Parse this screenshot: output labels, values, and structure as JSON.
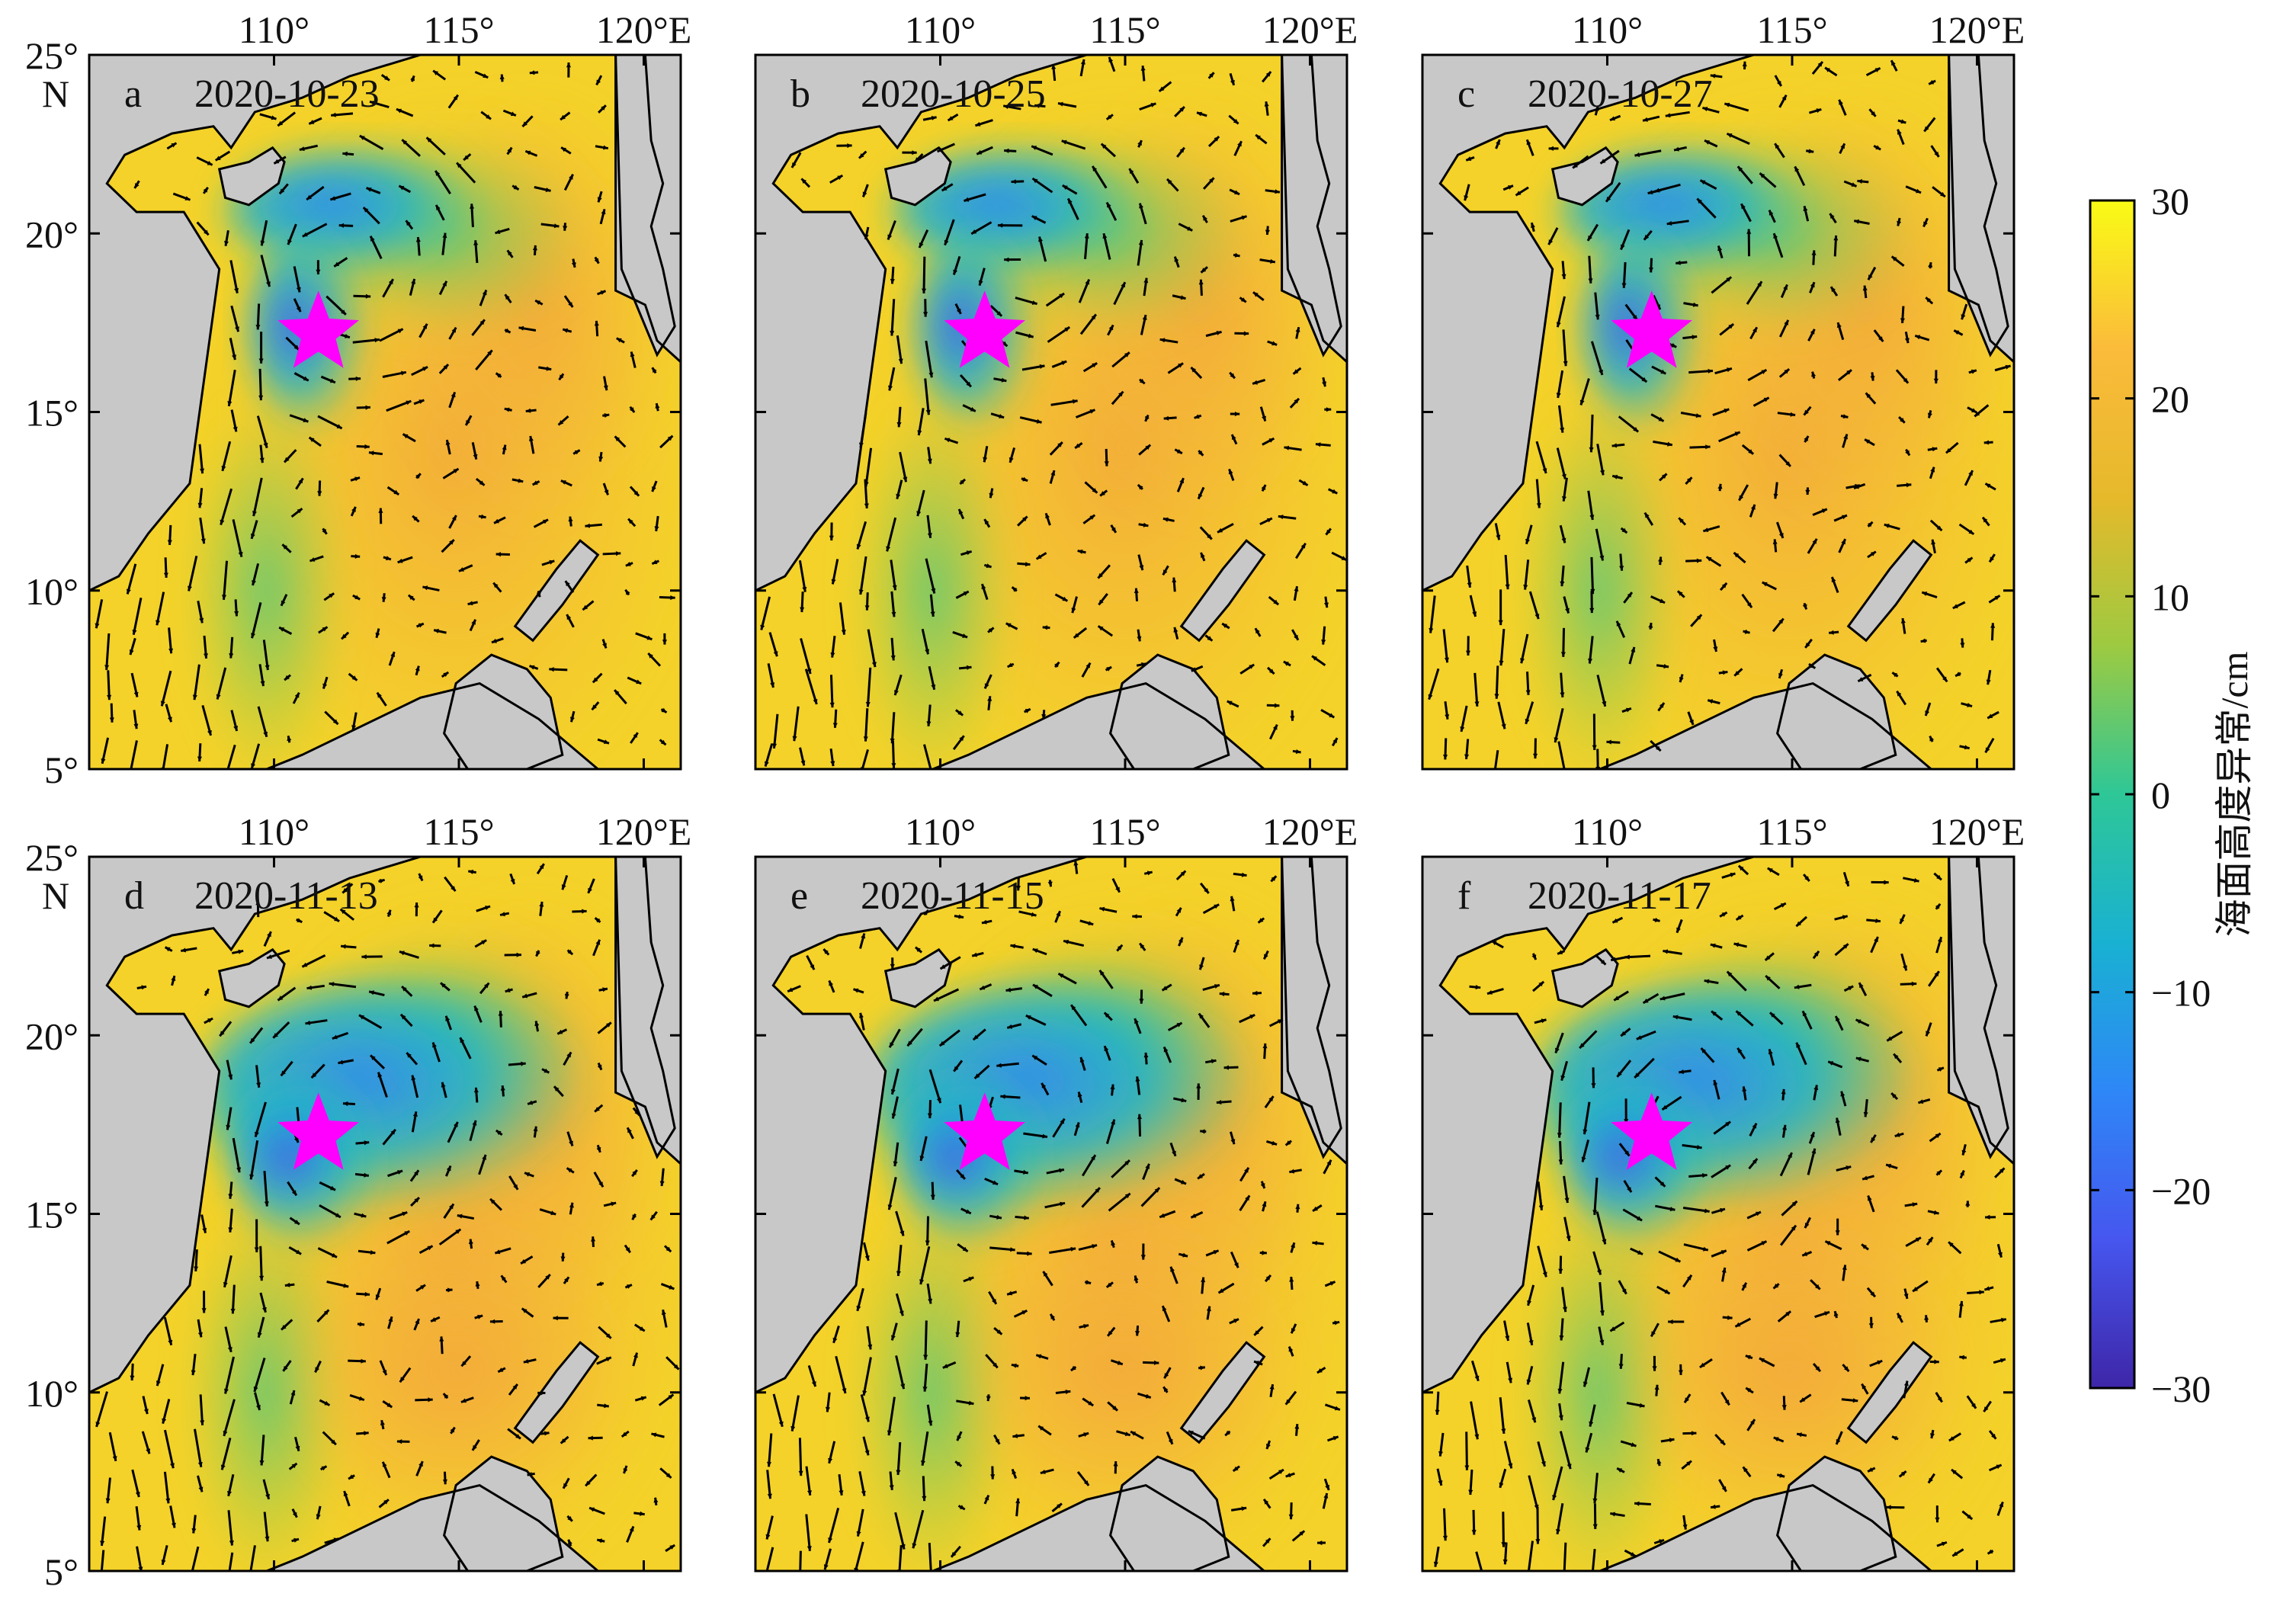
{
  "figure": {
    "lon_range": [
      105,
      121
    ],
    "lat_range": [
      5,
      25
    ],
    "lon_ticks": [
      {
        "value": 110,
        "label": "110°"
      },
      {
        "value": 115,
        "label": "115°"
      },
      {
        "value": 120,
        "label": "120°E"
      }
    ],
    "lat_ticks": [
      {
        "value": 25,
        "label": "25°"
      },
      {
        "value": 20,
        "label": "20°"
      },
      {
        "value": 15,
        "label": "15°"
      },
      {
        "value": 10,
        "label": "10°"
      },
      {
        "value": 5,
        "label": "5°"
      }
    ],
    "lat_hemisphere_label": "N",
    "marker": {
      "symbol": "star",
      "color": "#ff00ff",
      "lon": 111.2,
      "lat": 17.2
    },
    "land_color": "#c8c8c8",
    "coast_color": "#000000",
    "arrow_color": "#000000"
  },
  "panels": [
    {
      "letter": "a",
      "date": "2020-10-23"
    },
    {
      "letter": "b",
      "date": "2020-10-25"
    },
    {
      "letter": "c",
      "date": "2020-10-27"
    },
    {
      "letter": "d",
      "date": "2020-11-13"
    },
    {
      "letter": "e",
      "date": "2020-11-15"
    },
    {
      "letter": "f",
      "date": "2020-11-17"
    }
  ],
  "colorbar": {
    "label": "海面高度异常/cm",
    "min": -30,
    "max": 30,
    "ticks": [
      {
        "value": 30,
        "label": "30"
      },
      {
        "value": 20,
        "label": "20"
      },
      {
        "value": 10,
        "label": "10"
      },
      {
        "value": 0,
        "label": "0"
      },
      {
        "value": -10,
        "label": "−10"
      },
      {
        "value": -20,
        "label": "−20"
      },
      {
        "value": -30,
        "label": "−30"
      }
    ],
    "colormap": [
      "#3e26a8",
      "#4656ef",
      "#2e87f7",
      "#19b1d2",
      "#2ec797",
      "#9dca41",
      "#e6b92b",
      "#fbbb3b",
      "#f9fb15"
    ]
  }
}
